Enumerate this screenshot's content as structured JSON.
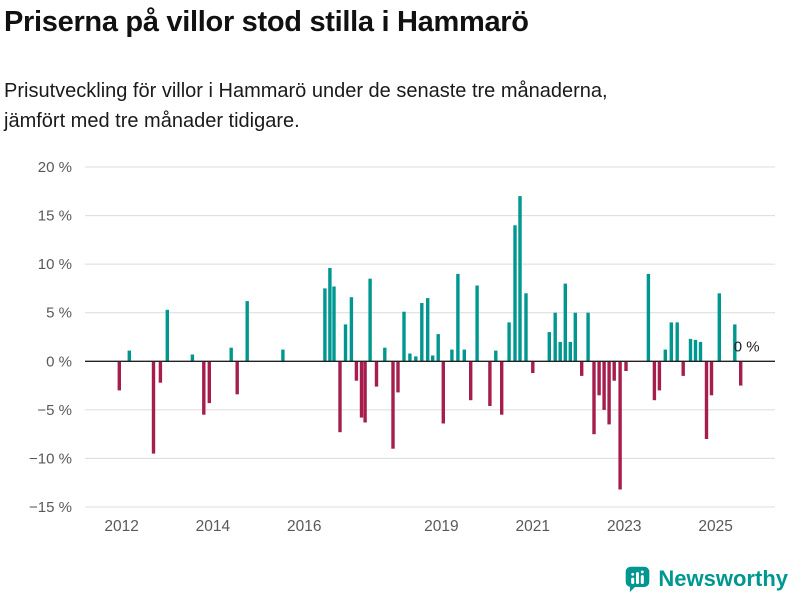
{
  "chart_data": {
    "type": "bar",
    "title": "Priserna på villor stod stilla i Hammarö",
    "subtitle": "Prisutveckling för villor i Hammarö under de senaste tre månaderna, jämfört med tre månader tidigare.",
    "subtitle_lines": [
      "Prisutveckling för villor i Hammarö under de senaste tre månaderna,",
      "jämfört med tre månader tidigare."
    ],
    "xlabel": "",
    "ylabel": "",
    "xlim": [
      2011.2,
      2026.3
    ],
    "ylim": [
      -15,
      20
    ],
    "grid": true,
    "x_ticks": [
      2012,
      2014,
      2016,
      2019,
      2021,
      2023,
      2025
    ],
    "y_ticks": [
      20,
      15,
      10,
      5,
      0,
      -5,
      -10,
      -15
    ],
    "y_tick_labels": [
      "20 %",
      "15 %",
      "10 %",
      "5 %",
      "0 %",
      "−5 %",
      "−10 %",
      "−15 %"
    ],
    "x": [
      2011.95,
      2012.17,
      2012.7,
      2012.85,
      2013.0,
      2013.55,
      2013.8,
      2013.92,
      2014.4,
      2014.53,
      2014.75,
      2015.53,
      2016.45,
      2016.56,
      2016.65,
      2016.78,
      2016.9,
      2017.03,
      2017.14,
      2017.25,
      2017.33,
      2017.44,
      2017.58,
      2017.76,
      2017.94,
      2018.05,
      2018.18,
      2018.31,
      2018.44,
      2018.57,
      2018.7,
      2018.81,
      2018.93,
      2019.04,
      2019.23,
      2019.36,
      2019.5,
      2019.64,
      2019.78,
      2020.06,
      2020.19,
      2020.32,
      2020.48,
      2020.61,
      2020.72,
      2020.85,
      2021.0,
      2021.36,
      2021.49,
      2021.6,
      2021.71,
      2021.82,
      2021.93,
      2022.07,
      2022.21,
      2022.34,
      2022.45,
      2022.56,
      2022.67,
      2022.78,
      2022.91,
      2023.04,
      2023.53,
      2023.66,
      2023.77,
      2023.9,
      2024.03,
      2024.16,
      2024.29,
      2024.45,
      2024.56,
      2024.67,
      2024.8,
      2024.91,
      2025.08,
      2025.42,
      2025.55,
      2025.68
    ],
    "values": [
      -3.0,
      1.1,
      -9.5,
      -2.2,
      5.3,
      0.7,
      -5.5,
      -4.3,
      1.4,
      -3.4,
      6.2,
      1.2,
      7.5,
      9.6,
      7.7,
      -7.3,
      3.8,
      6.6,
      -2.0,
      -5.8,
      -6.3,
      8.5,
      -2.6,
      1.4,
      -9.0,
      -3.2,
      5.1,
      0.8,
      0.5,
      6.0,
      6.5,
      0.6,
      2.8,
      -6.4,
      1.2,
      9.0,
      1.2,
      -4.0,
      7.8,
      -4.6,
      1.1,
      -5.5,
      4.0,
      14.0,
      17.0,
      7.0,
      -1.2,
      3.0,
      5.0,
      2.0,
      8.0,
      2.0,
      5.0,
      -1.5,
      5.0,
      -7.5,
      -3.5,
      -5.0,
      -6.5,
      -2.0,
      -13.2,
      -1.0,
      9.0,
      -4.0,
      -3.0,
      1.2,
      4.0,
      4.0,
      -1.5,
      2.3,
      2.2,
      2.0,
      -8.0,
      -3.5,
      7.0,
      3.8,
      -2.5,
      0.0
    ],
    "annotation": {
      "text": "0 %",
      "x": 2025.68,
      "y": 0
    },
    "latest_value_pct": 0,
    "colors": {
      "positive": "#009790",
      "negative": "#a61e4d",
      "brand": "#009790"
    },
    "legend": "none"
  },
  "footer": {
    "brand": "Newsworthy"
  }
}
